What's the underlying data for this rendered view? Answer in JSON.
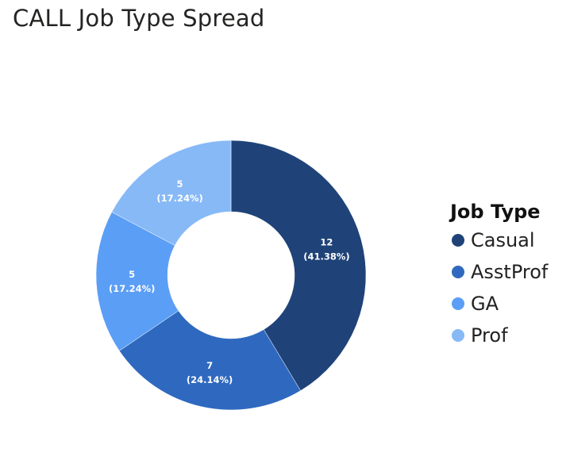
{
  "chart_data": {
    "type": "pie",
    "title": "CALL Job Type Spread",
    "legend_title": "Job Type",
    "legend_position": "right",
    "donut": true,
    "categories": [
      "Casual",
      "AsstProf",
      "GA",
      "Prof"
    ],
    "values": [
      12,
      7,
      5,
      5
    ],
    "percent_labels": [
      "(41.38%)",
      "(24.14%)",
      "(17.24%)",
      "(17.24%)"
    ],
    "colors": [
      "#1f4378",
      "#2f69bf",
      "#5b9ef5",
      "#87b9f7"
    ]
  }
}
